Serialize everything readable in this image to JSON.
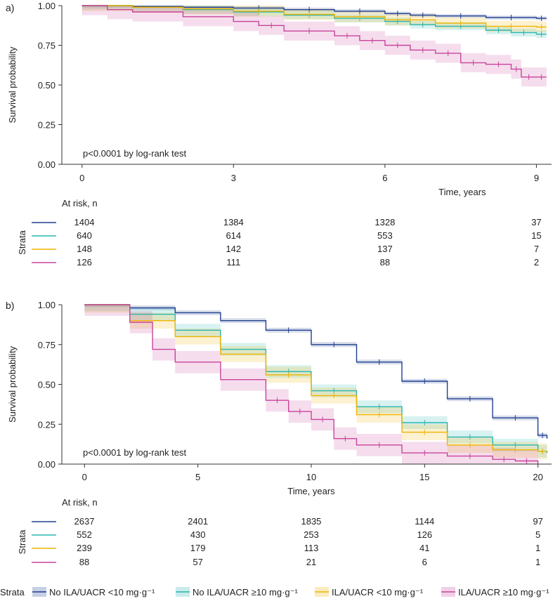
{
  "chart_data": [
    {
      "type": "line",
      "panel_label": "a)",
      "title": "",
      "xlabel": "Time, years",
      "ylabel": "Survival probability",
      "xlim": [
        -0.4,
        9.3
      ],
      "ylim": [
        0,
        1
      ],
      "x_ticks": [
        0,
        3,
        6,
        9
      ],
      "y_ticks": [
        0.0,
        0.25,
        0.5,
        0.75,
        1.0
      ],
      "y_tick_labels": [
        "0.00",
        "0.25",
        "0.50",
        "0.75",
        "1.00"
      ],
      "annotation": "p<0.0001 by log-rank test",
      "risk_table": {
        "title": "At risk, n",
        "side_label": "Strata",
        "times": [
          0,
          3,
          6,
          9
        ],
        "rows": [
          {
            "name": "No ILA/UACR <10 mg·g⁻¹",
            "values": [
              "1404",
              "1384",
              "1328",
              "37"
            ]
          },
          {
            "name": "No ILA/UACR ≥10 mg·g⁻¹",
            "values": [
              "640",
              "614",
              "553",
              "15"
            ]
          },
          {
            "name": "ILA/UACR <10 mg·g⁻¹",
            "values": [
              "148",
              "142",
              "137",
              "7"
            ]
          },
          {
            "name": "ILA/UACR ≥10 mg·g⁻¹",
            "values": [
              "126",
              "111",
              "88",
              "2"
            ]
          }
        ]
      },
      "series": [
        {
          "name": "No ILA/UACR <10 mg·g⁻¹",
          "color": "#1f3f8f",
          "band": 0.012,
          "x": [
            0,
            1,
            2,
            3,
            4,
            5,
            6,
            6.5,
            7,
            8,
            9,
            9.2
          ],
          "y": [
            1.0,
            0.995,
            0.99,
            0.985,
            0.975,
            0.965,
            0.95,
            0.94,
            0.935,
            0.925,
            0.92,
            0.92
          ]
        },
        {
          "name": "No ILA/UACR ≥10 mg·g⁻¹",
          "color": "#29b5b0",
          "band": 0.025,
          "x": [
            0,
            1,
            2,
            3,
            4,
            5,
            6,
            6.5,
            7,
            8,
            8.5,
            9,
            9.2
          ],
          "y": [
            1.0,
            0.99,
            0.975,
            0.96,
            0.94,
            0.92,
            0.9,
            0.88,
            0.87,
            0.845,
            0.83,
            0.82,
            0.82
          ]
        },
        {
          "name": "ILA/UACR <10 mg·g⁻¹",
          "color": "#f0b400",
          "band": 0.035,
          "x": [
            0,
            1,
            2,
            3,
            4,
            5,
            6,
            7,
            8,
            9,
            9.2
          ],
          "y": [
            1.0,
            0.99,
            0.98,
            0.965,
            0.945,
            0.93,
            0.91,
            0.89,
            0.87,
            0.865,
            0.865
          ]
        },
        {
          "name": "ILA/UACR ≥10 mg·g⁻¹",
          "color": "#c8449b",
          "band": 0.06,
          "x": [
            0,
            0.5,
            1,
            2,
            3,
            3.5,
            4,
            5,
            5.5,
            6,
            6.5,
            7,
            7.5,
            8,
            8.5,
            8.7,
            9,
            9.2
          ],
          "y": [
            1.0,
            0.975,
            0.96,
            0.93,
            0.9,
            0.875,
            0.84,
            0.81,
            0.78,
            0.75,
            0.72,
            0.7,
            0.64,
            0.63,
            0.6,
            0.55,
            0.55,
            0.55
          ]
        }
      ]
    },
    {
      "type": "line",
      "panel_label": "b)",
      "title": "",
      "xlabel": "Time, years",
      "ylabel": "Survival probability",
      "xlim": [
        -1,
        20.6
      ],
      "ylim": [
        0,
        1
      ],
      "x_ticks": [
        0,
        5,
        10,
        15,
        20
      ],
      "y_ticks": [
        0.0,
        0.25,
        0.5,
        0.75,
        1.0
      ],
      "y_tick_labels": [
        "0.00",
        "0.25",
        "0.50",
        "0.75",
        "1.00"
      ],
      "annotation": "p<0.0001 by log-rank test",
      "risk_table": {
        "title": "At risk, n",
        "side_label": "Strata",
        "times": [
          0,
          5,
          10,
          15,
          20
        ],
        "rows": [
          {
            "name": "No ILA/UACR <10 mg·g⁻¹",
            "values": [
              "2637",
              "2401",
              "1835",
              "1144",
              "97"
            ]
          },
          {
            "name": "No ILA/UACR ≥10 mg·g⁻¹",
            "values": [
              "552",
              "430",
              "253",
              "126",
              "5"
            ]
          },
          {
            "name": "ILA/UACR <10 mg·g⁻¹",
            "values": [
              "239",
              "179",
              "113",
              "41",
              "1"
            ]
          },
          {
            "name": "ILA/UACR ≥10 mg·g⁻¹",
            "values": [
              "88",
              "57",
              "21",
              "6",
              "1"
            ]
          }
        ]
      },
      "series": [
        {
          "name": "No ILA/UACR <10 mg·g⁻¹",
          "color": "#1f3f8f",
          "band": 0.015,
          "x": [
            0,
            2,
            4,
            6,
            8,
            10,
            12,
            14,
            16,
            18,
            20,
            20.4
          ],
          "y": [
            1.0,
            0.98,
            0.95,
            0.9,
            0.84,
            0.75,
            0.64,
            0.52,
            0.41,
            0.29,
            0.18,
            0.16
          ]
        },
        {
          "name": "No ILA/UACR ≥10 mg·g⁻¹",
          "color": "#29b5b0",
          "band": 0.04,
          "x": [
            0,
            2,
            4,
            6,
            8,
            10,
            12,
            14,
            16,
            18,
            20,
            20.4
          ],
          "y": [
            1.0,
            0.94,
            0.84,
            0.72,
            0.58,
            0.46,
            0.36,
            0.26,
            0.17,
            0.12,
            0.08,
            0.07
          ]
        },
        {
          "name": "ILA/UACR <10 mg·g⁻¹",
          "color": "#f0b400",
          "band": 0.05,
          "x": [
            0,
            2,
            4,
            6,
            8,
            10,
            12,
            14,
            16,
            18,
            20,
            20.4
          ],
          "y": [
            1.0,
            0.9,
            0.8,
            0.69,
            0.56,
            0.43,
            0.31,
            0.2,
            0.12,
            0.09,
            0.08,
            0.08
          ]
        },
        {
          "name": "ILA/UACR ≥10 mg·g⁻¹",
          "color": "#c8449b",
          "band": 0.07,
          "x": [
            0,
            2,
            3,
            4,
            6,
            8,
            9,
            10,
            11,
            12,
            14,
            16,
            18,
            19,
            20
          ],
          "y": [
            1.0,
            0.89,
            0.72,
            0.64,
            0.53,
            0.4,
            0.33,
            0.28,
            0.16,
            0.12,
            0.07,
            0.05,
            0.03,
            0.02,
            0.0
          ]
        }
      ]
    }
  ],
  "legend": {
    "title": "Strata",
    "items": [
      "No ILA/UACR <10 mg·g⁻¹",
      "No ILA/UACR ≥10 mg·g⁻¹",
      "ILA/UACR <10 mg·g⁻¹",
      "ILA/UACR ≥10 mg·g⁻¹"
    ],
    "colors": [
      "#1f3f8f",
      "#29b5b0",
      "#f0b400",
      "#c8449b"
    ]
  }
}
